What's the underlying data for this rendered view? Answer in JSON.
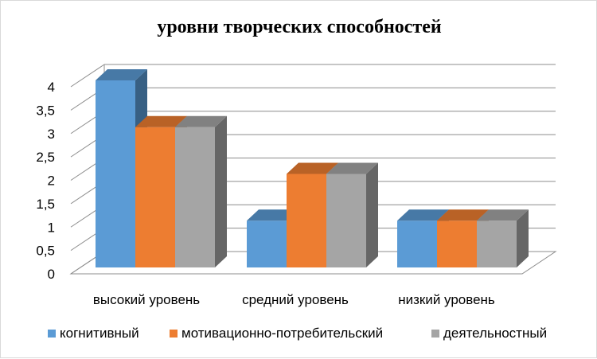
{
  "chart_data": {
    "type": "bar",
    "title": "уровни творческих способностей",
    "categories": [
      "высокий уровень",
      "средний уровень",
      "низкий уровень"
    ],
    "series": [
      {
        "name": "когнитивный",
        "values": [
          4,
          1,
          1
        ],
        "color": "#5B9BD5"
      },
      {
        "name": "мотивационно-потребительский",
        "values": [
          3,
          2,
          1
        ],
        "color": "#ED7D31"
      },
      {
        "name": "деятельностный",
        "values": [
          3,
          2,
          1
        ],
        "color": "#A5A5A5"
      }
    ],
    "yticks": [
      "0",
      "0,5",
      "1",
      "1,5",
      "2",
      "2,5",
      "3",
      "3,5",
      "4"
    ],
    "ylim": [
      0,
      4
    ],
    "grid": true,
    "legend": "bottom",
    "style": "3d-clustered-column"
  }
}
